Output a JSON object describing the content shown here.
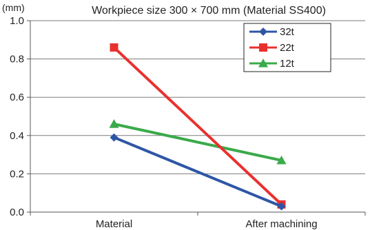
{
  "chart_data": {
    "type": "line",
    "title": "Workpiece size 300 × 700 mm (Material SS400)",
    "ylabel": "(mm)",
    "xlabel": "",
    "categories": [
      "Material",
      "After machining"
    ],
    "ylim": [
      0.0,
      1.0
    ],
    "yticks": [
      "0.0",
      "0.2",
      "0.4",
      "0.6",
      "0.8",
      "1.0"
    ],
    "ytick_values": [
      0.0,
      0.2,
      0.4,
      0.6,
      0.8,
      1.0
    ],
    "grid": true,
    "legend_position": "top-right",
    "series": [
      {
        "name": "32t",
        "values": [
          0.39,
          0.03
        ],
        "color": "#2e56a6",
        "marker": "diamond"
      },
      {
        "name": "22t",
        "values": [
          0.86,
          0.04
        ],
        "color": "#e8312f",
        "marker": "square"
      },
      {
        "name": "12t",
        "values": [
          0.46,
          0.27
        ],
        "color": "#3aaa4a",
        "marker": "triangle"
      }
    ]
  }
}
